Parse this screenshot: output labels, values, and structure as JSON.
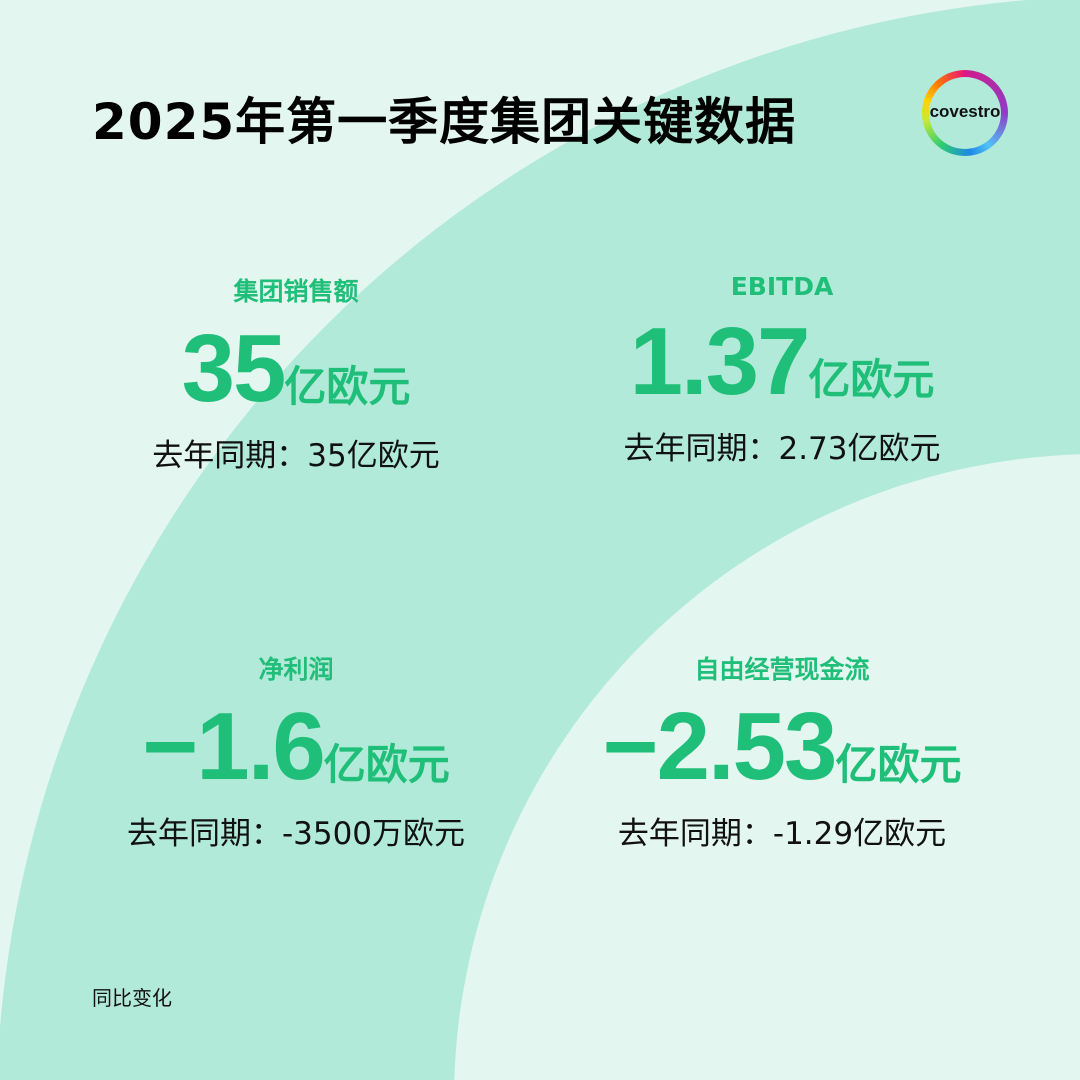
{
  "title": "2025年第一季度集团关键数据",
  "logo": "covestro",
  "colors": {
    "background": "#e3f6ef",
    "arc": "#b1ead8",
    "accent": "#1fbf7a",
    "text": "#111111"
  },
  "kpis": [
    {
      "label": "集团销售额",
      "value": "35",
      "unit": "亿欧元",
      "previous": "去年同期：35亿欧元"
    },
    {
      "label": "EBITDA",
      "value": "1.37",
      "unit": "亿欧元",
      "previous": "去年同期：2.73亿欧元"
    },
    {
      "label": "净利润",
      "value": "−1.6",
      "unit": "亿欧元",
      "previous": "去年同期：-3500万欧元"
    },
    {
      "label": "自由经营现金流",
      "value": "−2.53",
      "unit": "亿欧元",
      "previous": "去年同期：-1.29亿欧元"
    }
  ],
  "footnote": "同比变化"
}
